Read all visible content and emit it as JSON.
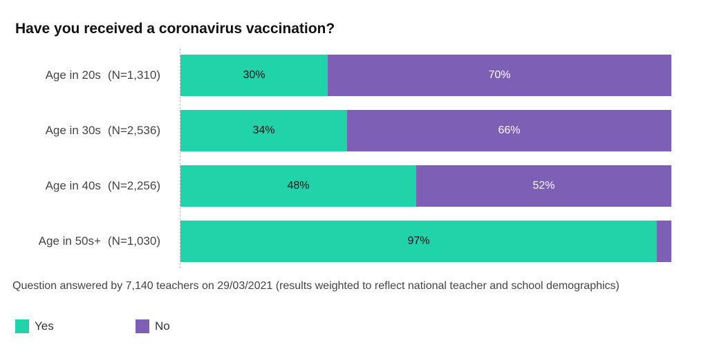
{
  "chart_data": {
    "type": "bar",
    "orientation": "horizontal",
    "stacked": true,
    "title": "Have you received a coronavirus vaccination?",
    "categories": [
      "Age in 20s",
      "Age in 30s",
      "Age in 40s",
      "Age in 50s+"
    ],
    "sample_sizes": [
      "(N=1,310)",
      "(N=2,536)",
      "(N=2,256)",
      "(N=1,030)"
    ],
    "series": [
      {
        "name": "Yes",
        "color": "#21d3a9",
        "values": [
          30,
          34,
          48,
          97
        ],
        "value_labels": [
          "30%",
          "34%",
          "48%",
          "97%"
        ]
      },
      {
        "name": "No",
        "color": "#7d5fb6",
        "values": [
          70,
          66,
          52,
          3
        ],
        "value_labels": [
          "70%",
          "66%",
          "52%",
          ""
        ]
      }
    ],
    "xlim": [
      0,
      100
    ],
    "grid": false,
    "legend_position": "bottom-left"
  },
  "note": "Question answered by 7,140 teachers on 29/03/2021 (results weighted to reflect national teacher and school demographics)"
}
